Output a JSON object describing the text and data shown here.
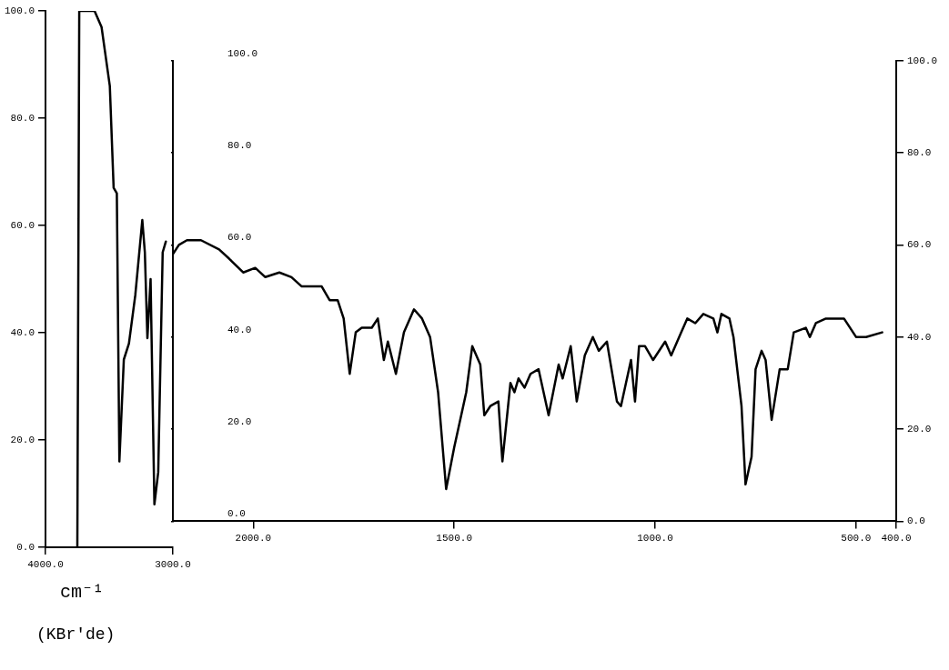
{
  "chart_data": [
    {
      "type": "line",
      "xlabel": "cm⁻¹",
      "annotations": [
        "(KBr'de)"
      ],
      "xlim": [
        4000,
        3000
      ],
      "ylim": [
        0,
        100
      ],
      "xticks": [
        {
          "value": 4000,
          "label": "4000.0"
        },
        {
          "value": 3000,
          "label": "3000.0"
        }
      ],
      "yticks": [
        {
          "value": 0,
          "label": "0.0"
        },
        {
          "value": 20,
          "label": "20.0"
        },
        {
          "value": 40,
          "label": "40.0"
        },
        {
          "value": 60,
          "label": "60.0"
        },
        {
          "value": 80,
          "label": "80.0"
        },
        {
          "value": 100,
          "label": "100.0"
        }
      ],
      "marker": "none",
      "series": [
        {
          "color": "#000000",
          "x": [
            3750,
            3735,
            3615,
            3560,
            3495,
            3465,
            3440,
            3420,
            3385,
            3345,
            3295,
            3240,
            3220,
            3200,
            3175,
            3145,
            3115,
            3080,
            3055
          ],
          "values": [
            0,
            100,
            100,
            97,
            86,
            67,
            66,
            16,
            35,
            38,
            47,
            61,
            55,
            39,
            50,
            8,
            14,
            55,
            57
          ]
        }
      ]
    },
    {
      "type": "line",
      "xlim": [
        2200,
        400
      ],
      "ylim": [
        0,
        100
      ],
      "y2lim": [
        0,
        100
      ],
      "xticks": [
        {
          "value": 2000,
          "label": "2000.0"
        },
        {
          "value": 1500,
          "label": "1500.0"
        },
        {
          "value": 1000,
          "label": "1000.0"
        },
        {
          "value": 500,
          "label": "500.0"
        },
        {
          "value": 400,
          "label": "400.0"
        }
      ],
      "yticks": [
        {
          "value": 0,
          "label": "0.0"
        },
        {
          "value": 20,
          "label": "20.0"
        },
        {
          "value": 40,
          "label": "40.0"
        },
        {
          "value": 60,
          "label": "60.0"
        },
        {
          "value": 80,
          "label": "80.0"
        },
        {
          "value": 100,
          "label": "100.0"
        }
      ],
      "y2ticks": [
        {
          "value": 0,
          "label": "0.0"
        },
        {
          "value": 20,
          "label": "20.0"
        },
        {
          "value": 40,
          "label": "40.0"
        },
        {
          "value": 60,
          "label": "60.0"
        },
        {
          "value": 80,
          "label": "80.0"
        },
        {
          "value": 100,
          "label": "100.0"
        }
      ],
      "marker": "none",
      "series": [
        {
          "color": "#000000",
          "x": [
            2200,
            2185,
            2165,
            2130,
            2085,
            2060,
            2025,
            1995,
            1970,
            1935,
            1905,
            1880,
            1830,
            1810,
            1790,
            1775,
            1760,
            1745,
            1730,
            1705,
            1690,
            1675,
            1665,
            1645,
            1625,
            1600,
            1580,
            1560,
            1540,
            1520,
            1500,
            1470,
            1455,
            1435,
            1425,
            1410,
            1390,
            1380,
            1360,
            1350,
            1340,
            1325,
            1310,
            1290,
            1265,
            1240,
            1230,
            1210,
            1195,
            1175,
            1155,
            1140,
            1120,
            1095,
            1085,
            1060,
            1050,
            1040,
            1025,
            1005,
            975,
            960,
            935,
            920,
            900,
            880,
            855,
            845,
            835,
            815,
            805,
            785,
            775,
            760,
            750,
            735,
            725,
            710,
            690,
            670,
            655,
            625,
            615,
            600,
            575,
            530,
            500,
            475,
            435
          ],
          "values": [
            58,
            60,
            61,
            61,
            59,
            57,
            54,
            55,
            53,
            54,
            53,
            51,
            51,
            48,
            48,
            44,
            32,
            41,
            42,
            42,
            44,
            35,
            39,
            32,
            41,
            46,
            44,
            40,
            28,
            7,
            16,
            28,
            38,
            34,
            23,
            25,
            26,
            13,
            30,
            28,
            31,
            29,
            32,
            33,
            23,
            34,
            31,
            38,
            26,
            36,
            40,
            37,
            39,
            26,
            25,
            35,
            26,
            38,
            38,
            35,
            39,
            36,
            41,
            44,
            43,
            45,
            44,
            41,
            45,
            44,
            40,
            25,
            8,
            14,
            33,
            37,
            35,
            22,
            33,
            33,
            41,
            42,
            40,
            43,
            44,
            44,
            40,
            40,
            41
          ]
        }
      ]
    }
  ]
}
